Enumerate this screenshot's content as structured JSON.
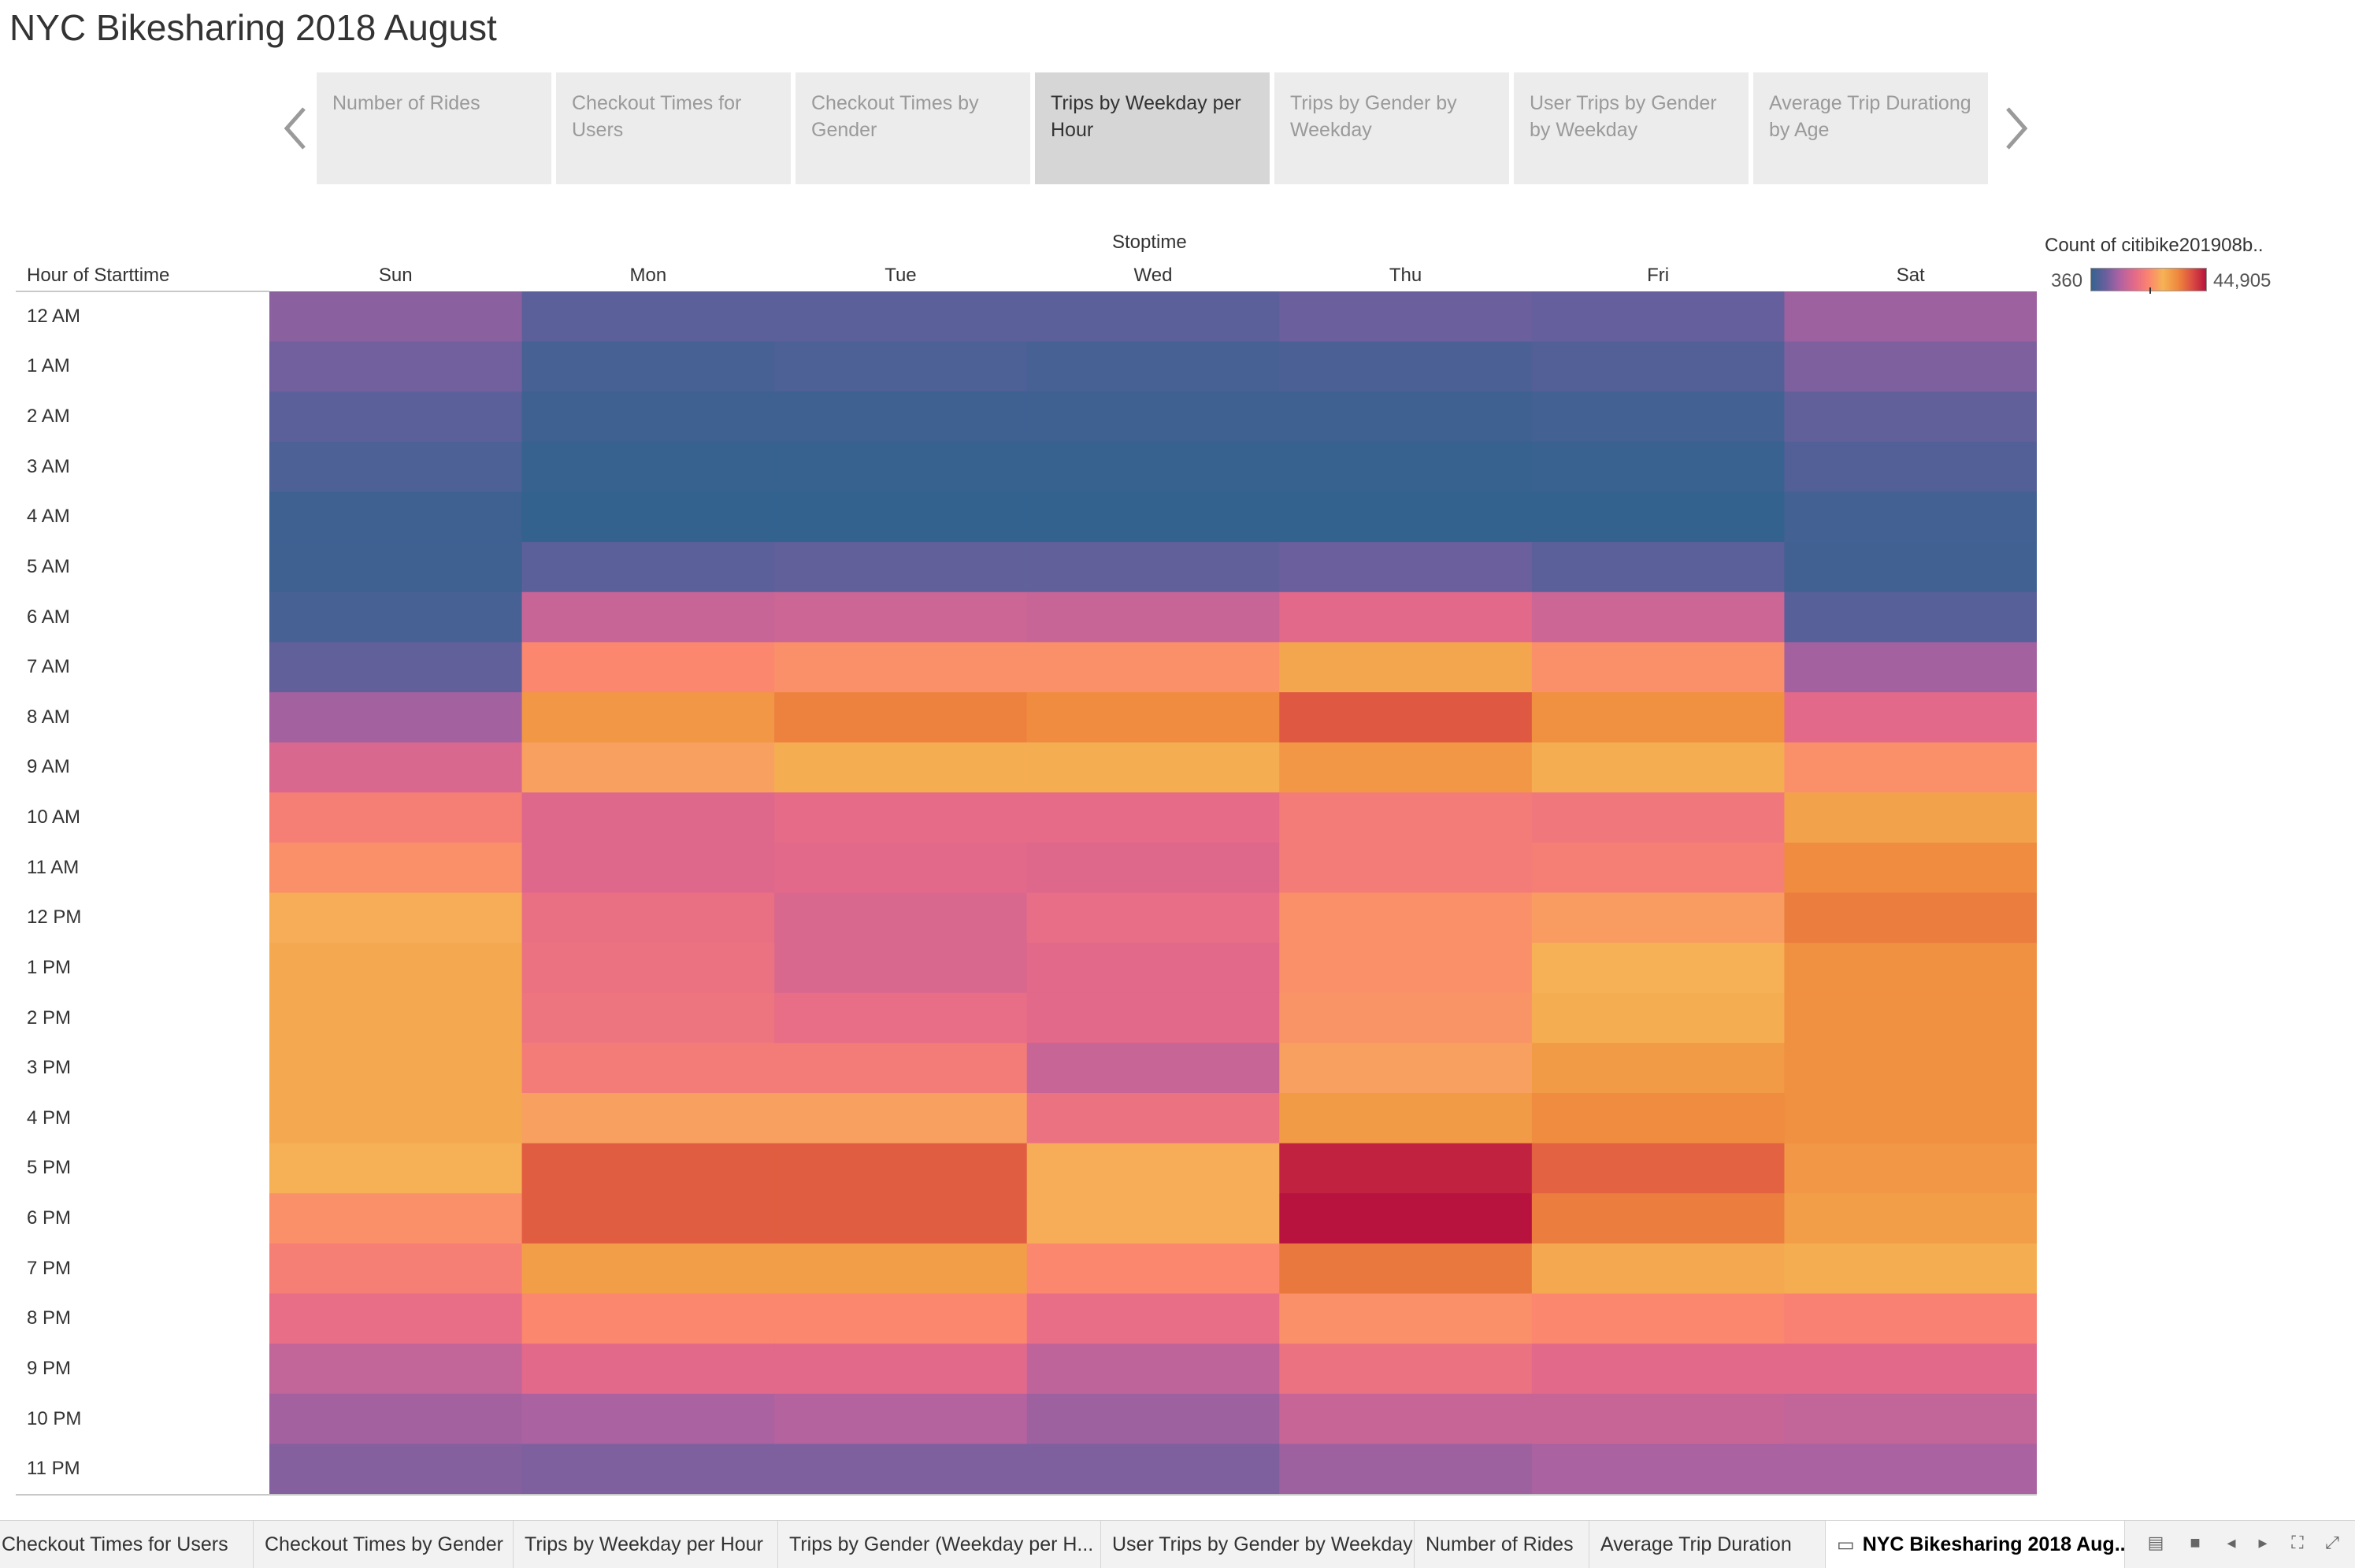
{
  "story": {
    "title": "NYC Bikesharing 2018 August",
    "nav_prev_icon": "chevron-left-icon",
    "nav_next_icon": "chevron-right-icon",
    "points": [
      {
        "label": "Number of Rides",
        "active": false
      },
      {
        "label": "Checkout Times for Users",
        "active": false
      },
      {
        "label": "Checkout Times by Gender",
        "active": false
      },
      {
        "label": "Trips by Weekday per Hour",
        "active": true
      },
      {
        "label": "Trips by Gender by Weekday",
        "active": false
      },
      {
        "label": "User Trips by Gender by Weekday",
        "active": false
      },
      {
        "label": "Average Trip Durationg by Age",
        "active": false
      }
    ]
  },
  "chart_data": {
    "type": "heatmap",
    "column_axis_title": "Stoptime",
    "row_axis_title": "Hour of Starttime",
    "columns": [
      "Sun",
      "Mon",
      "Tue",
      "Wed",
      "Thu",
      "Fri",
      "Sat"
    ],
    "rows": [
      "12 AM",
      "1 AM",
      "2 AM",
      "3 AM",
      "4 AM",
      "5 AM",
      "6 AM",
      "7 AM",
      "8 AM",
      "9 AM",
      "10 AM",
      "11 AM",
      "12 PM",
      "1 PM",
      "2 PM",
      "3 PM",
      "4 PM",
      "5 PM",
      "6 PM",
      "7 PM",
      "8 PM",
      "9 PM",
      "10 PM",
      "11 PM"
    ],
    "values": [
      [
        8500,
        4500,
        4500,
        4500,
        6000,
        5500,
        10000
      ],
      [
        6500,
        2500,
        3000,
        2500,
        2800,
        3500,
        7500
      ],
      [
        4500,
        1500,
        1500,
        1500,
        1500,
        2000,
        5000
      ],
      [
        3000,
        800,
        800,
        800,
        800,
        1000,
        3500
      ],
      [
        1500,
        360,
        360,
        360,
        360,
        500,
        2000
      ],
      [
        1500,
        4500,
        5000,
        5000,
        6000,
        4500,
        1800
      ],
      [
        2500,
        14000,
        14500,
        14000,
        17000,
        14500,
        4000
      ],
      [
        5000,
        23000,
        24000,
        24000,
        30000,
        24000,
        10500
      ],
      [
        10500,
        32000,
        34500,
        33500,
        38500,
        33000,
        17000
      ],
      [
        16000,
        26000,
        29000,
        29000,
        32000,
        29000,
        24000
      ],
      [
        21500,
        16500,
        17500,
        17500,
        21000,
        20000,
        30500
      ],
      [
        24000,
        16500,
        17000,
        16500,
        21000,
        21500,
        33500
      ],
      [
        27500,
        18500,
        16000,
        18000,
        24000,
        25500,
        35000
      ],
      [
        29500,
        19000,
        16000,
        17000,
        24000,
        28000,
        33000
      ],
      [
        29500,
        19500,
        18000,
        17000,
        24500,
        29000,
        33000
      ],
      [
        29500,
        21000,
        21000,
        14000,
        26000,
        31500,
        33000
      ],
      [
        29500,
        26000,
        26000,
        19000,
        31500,
        33500,
        33000
      ],
      [
        28000,
        38000,
        38000,
        27500,
        43500,
        37500,
        32000
      ],
      [
        24000,
        38000,
        38000,
        27500,
        44905,
        35000,
        31000
      ],
      [
        21500,
        31000,
        31000,
        23000,
        35500,
        29500,
        29000
      ],
      [
        18000,
        23000,
        23000,
        18000,
        24000,
        23000,
        22000
      ],
      [
        13500,
        17000,
        17000,
        13000,
        19000,
        17000,
        17000
      ],
      [
        10500,
        11000,
        12000,
        10000,
        14000,
        14000,
        13500
      ],
      [
        8000,
        7500,
        7500,
        7500,
        10000,
        11000,
        11000
      ]
    ],
    "legend": {
      "title": "Count of citibike201908b..",
      "min_label": "360",
      "max_label": "44,905",
      "min": 360,
      "max": 44905,
      "colors": [
        "#33628f",
        "#6a5f9e",
        "#b062a1",
        "#e3698a",
        "#fb8470",
        "#f6b355",
        "#ef8a3e",
        "#dc4f42",
        "#b8133f"
      ]
    }
  },
  "tabs": [
    {
      "label": "Checkout Times for Users",
      "active": false
    },
    {
      "label": "Checkout Times by Gender",
      "active": false
    },
    {
      "label": "Trips by Weekday per Hour",
      "active": false
    },
    {
      "label": "Trips by Gender (Weekday per H...",
      "active": false
    },
    {
      "label": "User Trips by Gender by Weekday",
      "active": false
    },
    {
      "label": "Number of Rides",
      "active": false
    },
    {
      "label": "Average Trip Duration",
      "active": false
    },
    {
      "label": "NYC Bikesharing 2018 Aug...",
      "active": true,
      "icon": "story-book-icon"
    }
  ],
  "toolbar": {
    "icons": [
      "sheet-sorter-icon",
      "filmstrip-icon",
      "previous-tab-icon",
      "next-tab-icon",
      "presentation-mode-icon",
      "fullscreen-icon"
    ]
  }
}
